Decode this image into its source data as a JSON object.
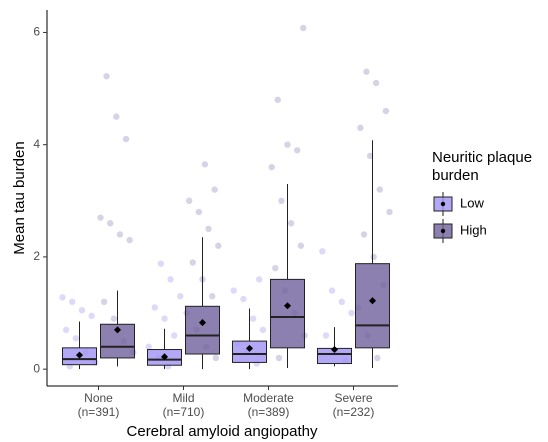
{
  "chart_data": {
    "type": "box",
    "x_label": "Cerebral amyloid angiopathy",
    "y_label": "Mean tau burden",
    "legend_title": [
      "Neuritic plaque",
      "burden"
    ],
    "categories": [
      "None",
      "Mild",
      "Moderate",
      "Severe"
    ],
    "category_counts": [
      "(n=391)",
      "(n=710)",
      "(n=389)",
      "(n=232)"
    ],
    "ylim": [
      -0.3,
      6.4
    ],
    "yticks": [
      0,
      2,
      4,
      6
    ],
    "legend_position": "right",
    "series": [
      {
        "name": "Low",
        "color": "#a092f2",
        "point_color": "#8f80ea",
        "boxes": [
          {
            "min": 0,
            "q1": 0.08,
            "median": 0.18,
            "q3": 0.38,
            "max": 0.85,
            "mean": 0.25,
            "points": [
              1.28,
              1.2,
              1.05,
              0.95,
              0.7,
              0.55,
              0.3,
              0.12,
              0.05
            ]
          },
          {
            "min": 0,
            "q1": 0.07,
            "median": 0.17,
            "q3": 0.35,
            "max": 0.72,
            "mean": 0.22,
            "points": [
              1.88,
              1.6,
              1.3,
              1.1,
              0.9,
              0.6,
              0.4,
              0.2,
              0.05
            ]
          },
          {
            "min": 0,
            "q1": 0.12,
            "median": 0.27,
            "q3": 0.5,
            "max": 1.08,
            "mean": 0.37,
            "points": [
              1.6,
              1.4,
              1.25,
              0.9,
              0.7,
              0.45,
              0.3,
              0.1
            ]
          },
          {
            "min": 0.05,
            "q1": 0.1,
            "median": 0.27,
            "q3": 0.37,
            "max": 0.75,
            "mean": 0.35,
            "points": [
              2.1,
              1.4,
              1.2,
              1.0,
              0.6,
              0.3,
              0.15
            ]
          }
        ]
      },
      {
        "name": "High",
        "color": "#6f609c",
        "point_color": "#7a6cae",
        "boxes": [
          {
            "min": 0.05,
            "q1": 0.2,
            "median": 0.4,
            "q3": 0.8,
            "max": 1.4,
            "mean": 0.7,
            "points": [
              5.22,
              4.5,
              4.1,
              2.7,
              2.6,
              2.4,
              2.3,
              1.2,
              0.9,
              0.5,
              0.3
            ]
          },
          {
            "min": 0,
            "q1": 0.27,
            "median": 0.6,
            "q3": 1.12,
            "max": 2.35,
            "mean": 0.83,
            "points": [
              3.65,
              3.2,
              3.0,
              2.8,
              2.5,
              2.2,
              1.9,
              1.6,
              1.3,
              1.0,
              0.7,
              0.4,
              0.2
            ]
          },
          {
            "min": 0.02,
            "q1": 0.38,
            "median": 0.93,
            "q3": 1.6,
            "max": 3.3,
            "mean": 1.13,
            "points": [
              6.08,
              4.8,
              4.0,
              3.9,
              3.6,
              3.0,
              2.6,
              2.2,
              1.8,
              1.4,
              1.0,
              0.6,
              0.2
            ]
          },
          {
            "min": 0.02,
            "q1": 0.38,
            "median": 0.78,
            "q3": 1.88,
            "max": 4.08,
            "mean": 1.22,
            "points": [
              5.3,
              5.1,
              4.6,
              4.3,
              3.8,
              3.2,
              2.8,
              2.4,
              2.0,
              1.5,
              1.1,
              0.6,
              0.2
            ]
          }
        ]
      }
    ]
  }
}
